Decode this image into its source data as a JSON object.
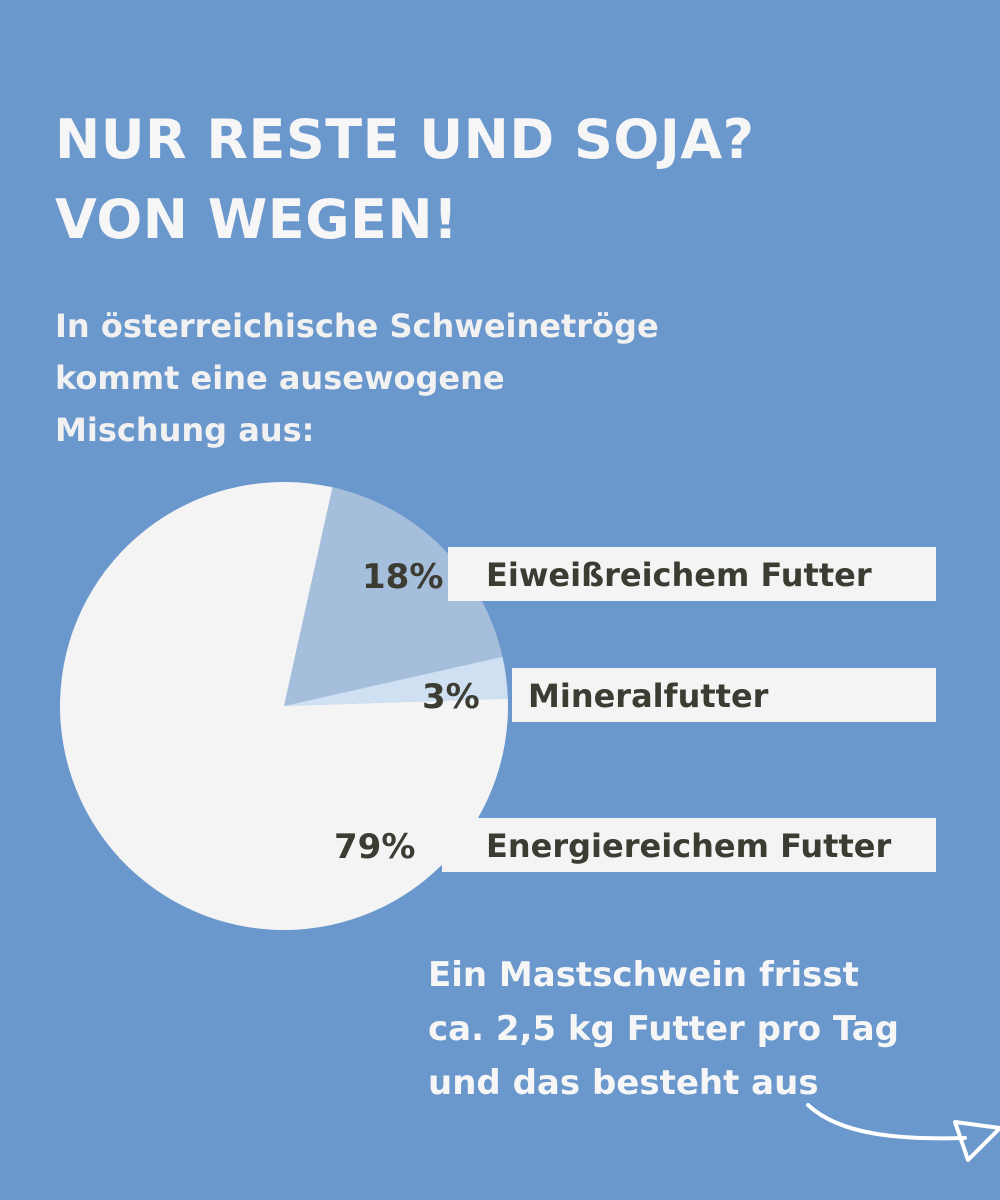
{
  "title_lines": [
    "NUR RESTE UND SOJA?",
    "VON WEGEN!"
  ],
  "subtitle_lines": [
    "In österreichische Schweinetröge",
    "kommt eine ausewogene",
    "Mischung aus:"
  ],
  "footnote_lines": [
    "Ein Mastschwein frisst",
    "ca. 2,5 kg Futter pro Tag",
    "und das besteht aus"
  ],
  "colors": {
    "background": "#6a97cc",
    "slice_protein": "#a5bedc",
    "slice_mineral": "#cfe0f3",
    "slice_energy": "#f4f4f4",
    "label_text": "#3c3c33"
  },
  "chart_data": {
    "type": "pie",
    "title": "",
    "slices": [
      {
        "label": "Eiweißreichem Futter",
        "value": 18,
        "display": "18%"
      },
      {
        "label": "Mineralfutter",
        "value": 3,
        "display": "3%"
      },
      {
        "label": "Energiereichem Futter",
        "value": 79,
        "display": "79%"
      }
    ]
  }
}
